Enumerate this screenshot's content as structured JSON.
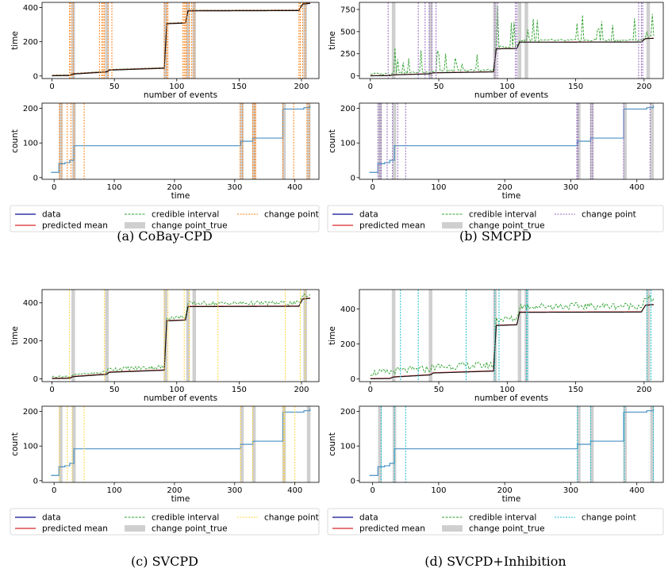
{
  "colors": {
    "data": "#0b0b8f",
    "predicted_mean": "#d62728",
    "credible_interval": "#2ca02c",
    "change_point_true": "#cfcfcf",
    "blue_line": "#4a90c4",
    "cp_cobay": "#ff7f0e",
    "cp_smcpd": "#9467bd",
    "cp_svcpd": "#ffd43b",
    "cp_inhib": "#17becf"
  },
  "legend": {
    "data": "data",
    "predicted_mean": "predicted mean",
    "credible_interval": "credible interval",
    "change_point_true": "change point_true",
    "change_point": "change point"
  },
  "chart_data": [
    {
      "id": "a",
      "caption": "(a) CoBay-CPD",
      "cp_color_key": "cp_cobay",
      "top": {
        "type": "line",
        "xlabel": "number of events",
        "ylabel": "time",
        "xlim": [
          -8,
          214
        ],
        "ylim": [
          -15,
          430
        ],
        "xticks": [
          0,
          50,
          100,
          150,
          200
        ],
        "yticks": [
          0,
          200,
          400
        ],
        "true_cp": [
          17,
          44,
          91,
          109,
          114,
          203
        ],
        "cp": [
          14,
          15,
          17,
          38,
          40,
          41,
          42,
          45,
          48,
          90,
          92,
          93,
          105,
          106,
          107,
          108,
          110,
          112,
          114,
          198,
          199,
          201,
          203
        ],
        "noise": 0
      },
      "bottom": {
        "type": "line",
        "xlabel": "time",
        "ylabel": "count",
        "xlim": [
          -20,
          440
        ],
        "ylim": [
          -5,
          215
        ],
        "xticks": [
          0,
          100,
          200,
          300,
          400
        ],
        "yticks": [
          0,
          100,
          200
        ],
        "true_cp": [
          11,
          33,
          312,
          332,
          382,
          423
        ],
        "cp": [
          9,
          13,
          22,
          28,
          33,
          50,
          309,
          313,
          330,
          333,
          335,
          380,
          398,
          420,
          424
        ]
      }
    },
    {
      "id": "b",
      "caption": "(b) SMCPD",
      "cp_color_key": "cp_smcpd",
      "top": {
        "type": "line",
        "xlabel": "number of events",
        "ylabel": "time",
        "xlim": [
          -8,
          214
        ],
        "ylim": [
          -30,
          830
        ],
        "xticks": [
          0,
          50,
          100,
          150,
          200
        ],
        "yticks": [
          0,
          250,
          500,
          750
        ],
        "true_cp": [
          17,
          44,
          91,
          109,
          114,
          203
        ],
        "cp": [
          13,
          35,
          40,
          43,
          45,
          48,
          91,
          93,
          106,
          107,
          196,
          198,
          199
        ],
        "noise": 1
      },
      "bottom": {
        "type": "line",
        "xlabel": "time",
        "ylabel": "count",
        "xlim": [
          -20,
          440
        ],
        "ylim": [
          -5,
          215
        ],
        "xticks": [
          0,
          100,
          200,
          300,
          400
        ],
        "yticks": [
          0,
          100,
          200
        ],
        "true_cp": [
          11,
          33,
          312,
          332,
          382,
          423
        ],
        "cp": [
          8,
          11,
          13,
          22,
          30,
          38,
          50,
          309,
          311,
          330,
          333,
          380,
          420
        ]
      }
    },
    {
      "id": "c",
      "caption": "(c) SVCPD",
      "cp_color_key": "cp_svcpd",
      "top": {
        "type": "line",
        "xlabel": "number of events",
        "ylabel": "time",
        "xlim": [
          -8,
          214
        ],
        "ylim": [
          -15,
          470
        ],
        "xticks": [
          0,
          50,
          100,
          150,
          200
        ],
        "yticks": [
          0,
          200,
          400
        ],
        "true_cp": [
          17,
          44,
          91,
          109,
          114,
          203
        ],
        "cp": [
          14,
          42,
          90,
          93,
          106,
          110,
          133,
          187,
          199,
          203
        ],
        "noise": 2
      },
      "bottom": {
        "type": "line",
        "xlabel": "time",
        "ylabel": "count",
        "xlim": [
          -20,
          440
        ],
        "ylim": [
          -5,
          215
        ],
        "xticks": [
          0,
          100,
          200,
          300,
          400
        ],
        "yticks": [
          0,
          100,
          200
        ],
        "true_cp": [
          11,
          33,
          312,
          332,
          382,
          423
        ],
        "cp": [
          9,
          22,
          30,
          50,
          310,
          330,
          381,
          383,
          400
        ]
      }
    },
    {
      "id": "d",
      "caption": "(d) SVCPD+Inhibition",
      "cp_color_key": "cp_inhib",
      "top": {
        "type": "line",
        "xlabel": "number of events",
        "ylabel": "time",
        "xlim": [
          -8,
          214
        ],
        "ylim": [
          -15,
          510
        ],
        "xticks": [
          0,
          50,
          100,
          150,
          200
        ],
        "yticks": [
          0,
          200,
          400
        ],
        "true_cp": [
          17,
          44,
          91,
          109,
          114,
          203
        ],
        "cp": [
          22,
          35,
          70,
          91,
          94,
          114,
          115,
          202,
          205
        ],
        "noise": 3
      },
      "bottom": {
        "type": "line",
        "xlabel": "time",
        "ylabel": "count",
        "xlim": [
          -20,
          440
        ],
        "ylim": [
          -5,
          215
        ],
        "xticks": [
          0,
          100,
          200,
          300,
          400
        ],
        "yticks": [
          0,
          100,
          200
        ],
        "true_cp": [
          11,
          33,
          312,
          332,
          382,
          423
        ],
        "cp": [
          13,
          33,
          50,
          310,
          330,
          381,
          425
        ]
      }
    }
  ]
}
